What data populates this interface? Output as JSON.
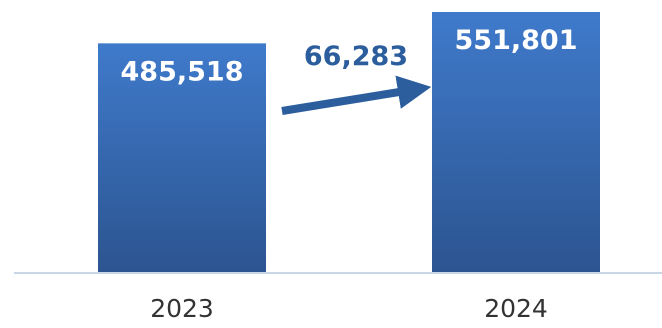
{
  "chart_data": {
    "type": "bar",
    "categories": [
      "2023",
      "2024"
    ],
    "values": [
      485518,
      551801
    ],
    "data_labels": [
      "485,518",
      "551,801"
    ],
    "annotation": {
      "text": "66,283",
      "from": "2023",
      "to": "2024"
    },
    "title": "",
    "xlabel": "",
    "ylabel": "",
    "grid": false,
    "legend": "none"
  },
  "colors": {
    "bar_top": "#3f7acb",
    "bar_bottom": "#2c5490",
    "annotation": "#2c5e9e",
    "axis_line": "#c9d6e6",
    "tick_text": "#333333"
  }
}
